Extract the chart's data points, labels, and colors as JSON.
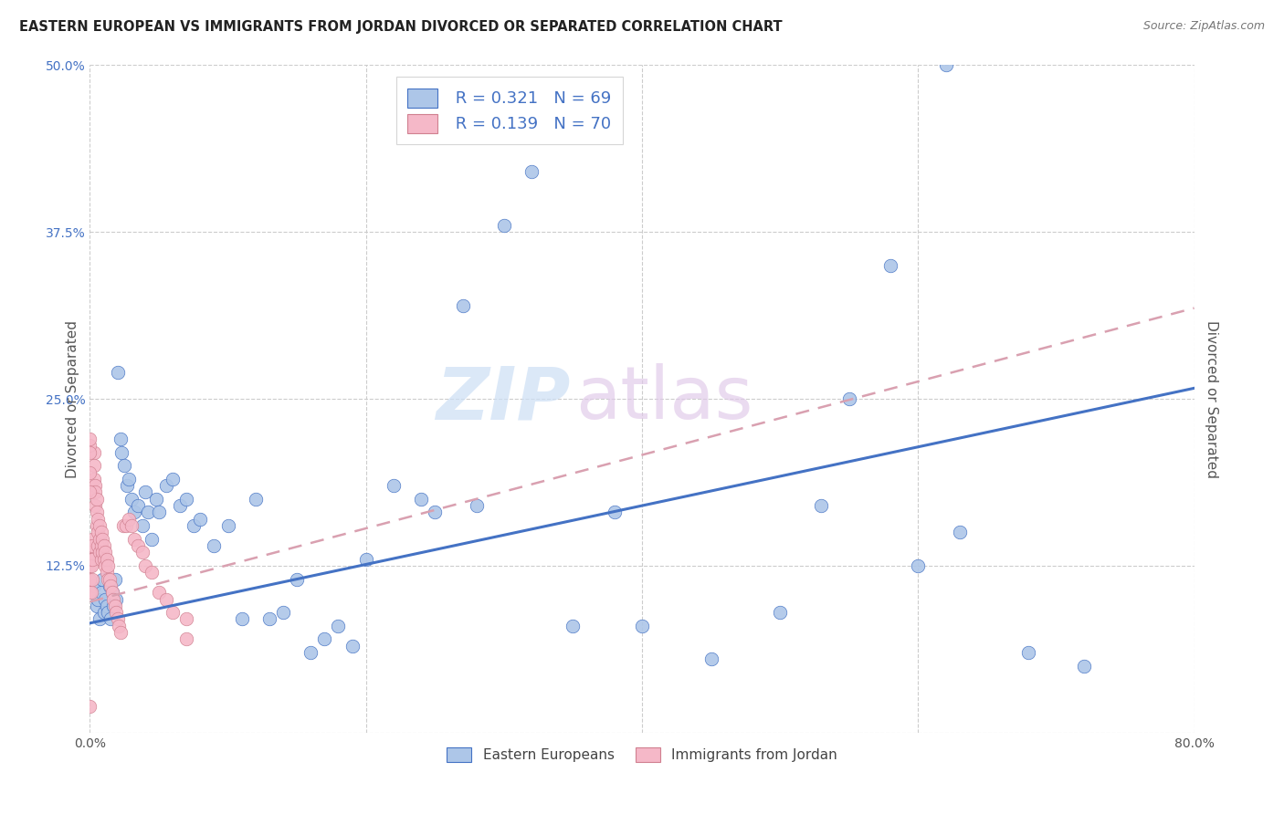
{
  "title": "EASTERN EUROPEAN VS IMMIGRANTS FROM JORDAN DIVORCED OR SEPARATED CORRELATION CHART",
  "source": "Source: ZipAtlas.com",
  "ylabel": "Divorced or Separated",
  "xlim": [
    0.0,
    0.8
  ],
  "ylim": [
    0.0,
    0.5
  ],
  "xticks": [
    0.0,
    0.2,
    0.4,
    0.6,
    0.8
  ],
  "xticklabels": [
    "0.0%",
    "",
    "",
    "",
    "80.0%"
  ],
  "yticks": [
    0.0,
    0.125,
    0.25,
    0.375,
    0.5
  ],
  "yticklabels_right": [
    "",
    "12.5%",
    "25.0%",
    "37.5%",
    "50.0%"
  ],
  "legend_r1": "R = 0.321",
  "legend_n1": "N = 69",
  "legend_r2": "R = 0.139",
  "legend_n2": "N = 70",
  "color_eastern": "#adc6e8",
  "color_jordan": "#f5b8c8",
  "color_line_eastern": "#4472c4",
  "color_line_jordan": "#d9a0b0",
  "label_eastern": "Eastern Europeans",
  "label_jordan": "Immigrants from Jordan",
  "background_color": "#ffffff",
  "grid_color": "#cccccc",
  "axis_label_color": "#4472c4",
  "blue_line_x0": 0.0,
  "blue_line_y0": 0.082,
  "blue_line_x1": 0.8,
  "blue_line_y1": 0.258,
  "pink_line_x0": 0.0,
  "pink_line_y0": 0.098,
  "pink_line_x1": 0.8,
  "pink_line_y1": 0.318,
  "eastern_x": [
    0.003,
    0.005,
    0.006,
    0.007,
    0.008,
    0.009,
    0.01,
    0.011,
    0.012,
    0.013,
    0.014,
    0.015,
    0.016,
    0.017,
    0.018,
    0.019,
    0.02,
    0.022,
    0.023,
    0.025,
    0.027,
    0.028,
    0.03,
    0.032,
    0.035,
    0.038,
    0.04,
    0.042,
    0.045,
    0.048,
    0.05,
    0.055,
    0.06,
    0.065,
    0.07,
    0.075,
    0.08,
    0.09,
    0.1,
    0.11,
    0.12,
    0.13,
    0.14,
    0.15,
    0.16,
    0.17,
    0.18,
    0.19,
    0.2,
    0.22,
    0.24,
    0.25,
    0.27,
    0.3,
    0.32,
    0.35,
    0.4,
    0.45,
    0.5,
    0.55,
    0.6,
    0.63,
    0.68,
    0.72,
    0.62,
    0.58,
    0.53,
    0.38,
    0.28
  ],
  "eastern_y": [
    0.11,
    0.095,
    0.1,
    0.085,
    0.105,
    0.115,
    0.09,
    0.1,
    0.095,
    0.09,
    0.11,
    0.085,
    0.105,
    0.095,
    0.115,
    0.1,
    0.27,
    0.22,
    0.21,
    0.2,
    0.185,
    0.19,
    0.175,
    0.165,
    0.17,
    0.155,
    0.18,
    0.165,
    0.145,
    0.175,
    0.165,
    0.185,
    0.19,
    0.17,
    0.175,
    0.155,
    0.16,
    0.14,
    0.155,
    0.085,
    0.175,
    0.085,
    0.09,
    0.115,
    0.06,
    0.07,
    0.08,
    0.065,
    0.13,
    0.185,
    0.175,
    0.165,
    0.32,
    0.38,
    0.42,
    0.08,
    0.08,
    0.055,
    0.09,
    0.25,
    0.125,
    0.15,
    0.06,
    0.05,
    0.5,
    0.35,
    0.17,
    0.165,
    0.17
  ],
  "jordan_x": [
    0.0,
    0.0,
    0.0,
    0.0,
    0.0,
    0.001,
    0.001,
    0.001,
    0.001,
    0.001,
    0.002,
    0.002,
    0.002,
    0.002,
    0.003,
    0.003,
    0.003,
    0.004,
    0.004,
    0.004,
    0.005,
    0.005,
    0.005,
    0.006,
    0.006,
    0.006,
    0.007,
    0.007,
    0.007,
    0.008,
    0.008,
    0.008,
    0.009,
    0.009,
    0.01,
    0.01,
    0.011,
    0.011,
    0.012,
    0.012,
    0.013,
    0.013,
    0.014,
    0.015,
    0.016,
    0.017,
    0.018,
    0.019,
    0.02,
    0.021,
    0.022,
    0.024,
    0.026,
    0.028,
    0.03,
    0.032,
    0.035,
    0.038,
    0.04,
    0.045,
    0.05,
    0.055,
    0.06,
    0.07,
    0.07,
    0.0,
    0.0,
    0.0,
    0.0,
    0.0
  ],
  "jordan_y": [
    0.135,
    0.125,
    0.115,
    0.105,
    0.02,
    0.14,
    0.135,
    0.13,
    0.125,
    0.105,
    0.145,
    0.14,
    0.13,
    0.115,
    0.21,
    0.2,
    0.19,
    0.185,
    0.18,
    0.17,
    0.175,
    0.165,
    0.155,
    0.16,
    0.15,
    0.14,
    0.155,
    0.145,
    0.135,
    0.15,
    0.14,
    0.13,
    0.145,
    0.135,
    0.14,
    0.13,
    0.135,
    0.125,
    0.13,
    0.12,
    0.125,
    0.115,
    0.115,
    0.11,
    0.105,
    0.1,
    0.095,
    0.09,
    0.085,
    0.08,
    0.075,
    0.155,
    0.155,
    0.16,
    0.155,
    0.145,
    0.14,
    0.135,
    0.125,
    0.12,
    0.105,
    0.1,
    0.09,
    0.085,
    0.07,
    0.215,
    0.22,
    0.21,
    0.195,
    0.18
  ]
}
